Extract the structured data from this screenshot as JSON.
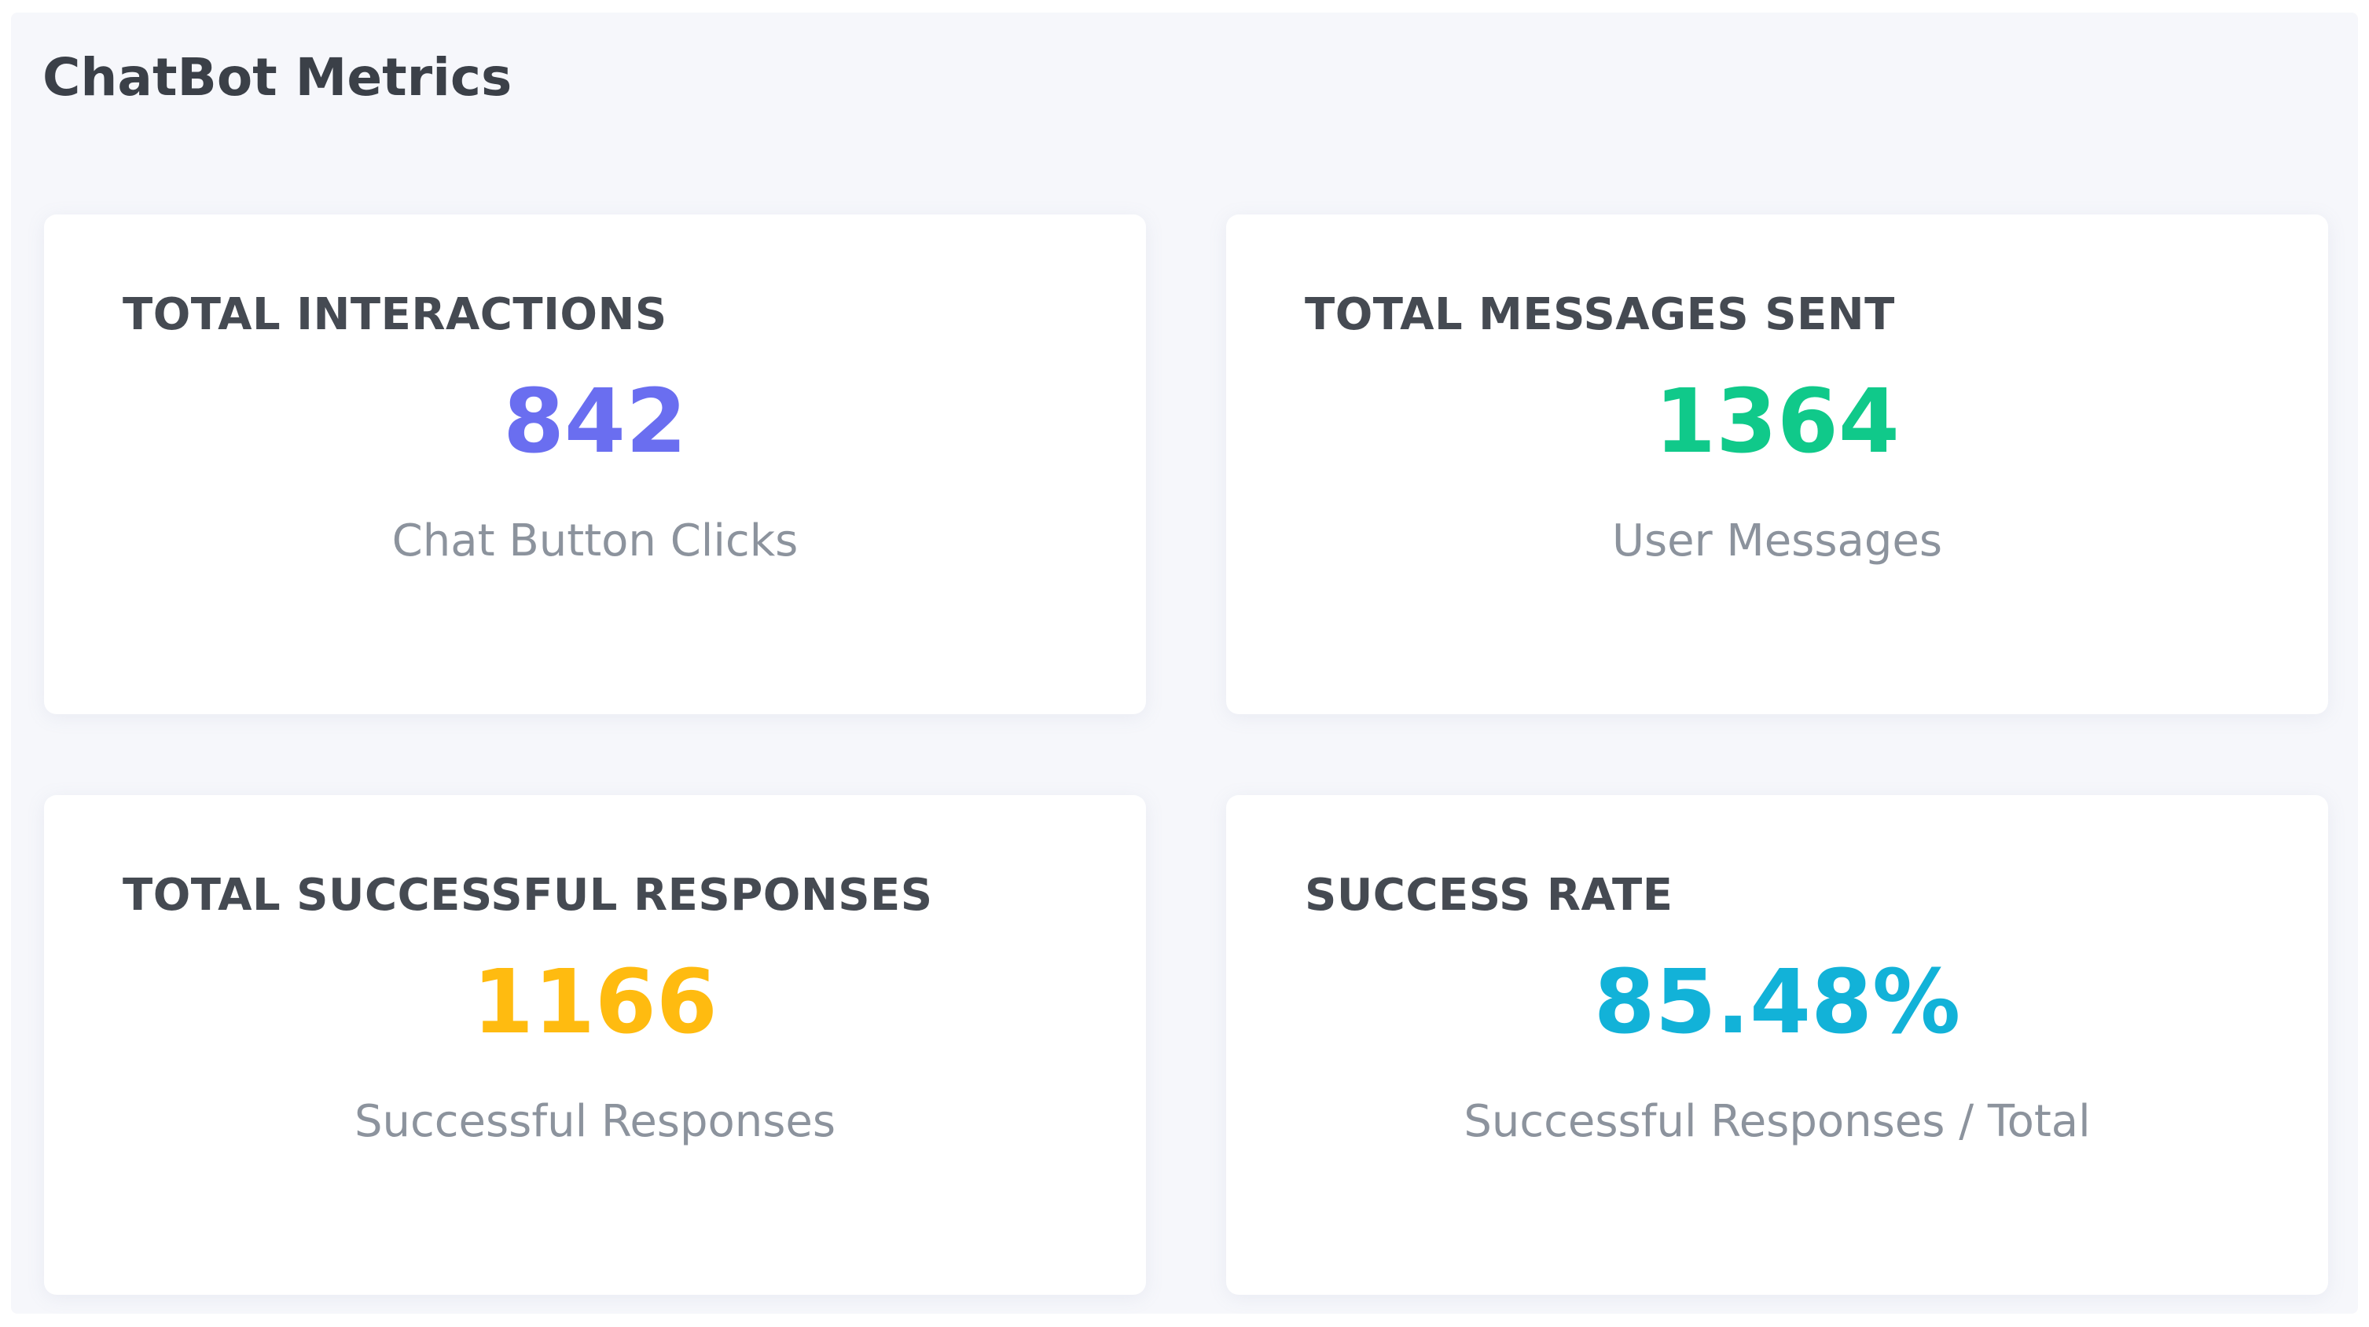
{
  "page": {
    "title": "ChatBot Metrics"
  },
  "colors": {
    "background": "#f6f7fb",
    "card": "#ffffff",
    "title_text": "#454a52",
    "caption_text": "#8c939d"
  },
  "metrics": [
    {
      "title": "TOTAL INTERACTIONS",
      "value": "842",
      "caption": "Chat Button Clicks",
      "color": "#6a6ef0"
    },
    {
      "title": "TOTAL MESSAGES SENT",
      "value": "1364",
      "caption": "User Messages",
      "color": "#10c98a"
    },
    {
      "title": "TOTAL SUCCESSFUL RESPONSES",
      "value": "1166",
      "caption": "Successful Responses",
      "color": "#ffbb10"
    },
    {
      "title": "SUCCESS RATE",
      "value": "85.48%",
      "caption": "Successful Responses / Total",
      "color": "#12b2d8"
    }
  ]
}
